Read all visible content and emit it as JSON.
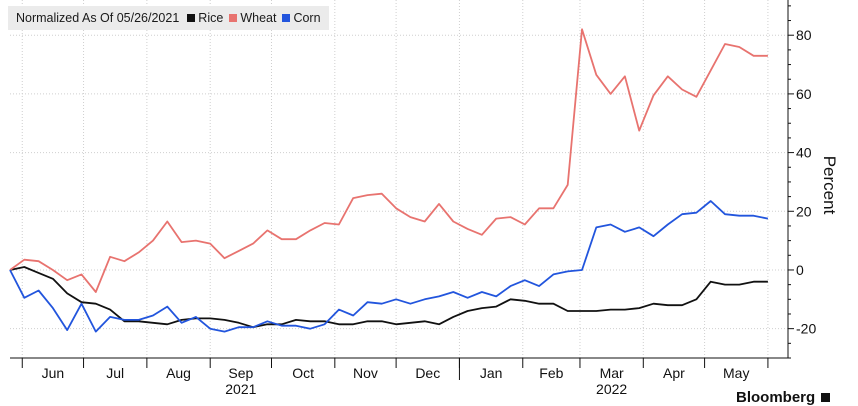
{
  "legend": {
    "note": "Normalized As Of 05/26/2021",
    "items": [
      {
        "label": "Rice",
        "color": "#111111"
      },
      {
        "label": "Wheat",
        "color": "#e8736f"
      },
      {
        "label": "Corn",
        "color": "#2255dd"
      }
    ]
  },
  "brand": {
    "label": "Bloomberg"
  },
  "chart_data": {
    "type": "line",
    "title": "",
    "normalization_note": "Normalized As Of 05/26/2021",
    "ylabel": "Percent",
    "y_axis_side": "right",
    "ylim": [
      -30,
      92
    ],
    "yticks": [
      -20,
      0,
      20,
      40,
      60,
      80
    ],
    "grid": true,
    "legend_position": "top-left",
    "x_start": "2021-05-26",
    "x_end": "2022-06-03",
    "month_labels": [
      "Jun",
      "Jul",
      "Aug",
      "Sep",
      "Oct",
      "Nov",
      "Dec",
      "Jan",
      "Feb",
      "Mar",
      "Apr",
      "May"
    ],
    "year_labels": [
      {
        "label": "2021",
        "month": "Sep"
      },
      {
        "label": "2022",
        "month": "Mar"
      }
    ],
    "x": [
      "2021-05-26",
      "2021-06-02",
      "2021-06-09",
      "2021-06-16",
      "2021-06-23",
      "2021-06-30",
      "2021-07-07",
      "2021-07-14",
      "2021-07-21",
      "2021-07-28",
      "2021-08-04",
      "2021-08-11",
      "2021-08-18",
      "2021-08-25",
      "2021-09-01",
      "2021-09-08",
      "2021-09-15",
      "2021-09-22",
      "2021-09-29",
      "2021-10-06",
      "2021-10-13",
      "2021-10-20",
      "2021-10-27",
      "2021-11-03",
      "2021-11-10",
      "2021-11-17",
      "2021-11-24",
      "2021-12-01",
      "2021-12-08",
      "2021-12-15",
      "2021-12-22",
      "2021-12-29",
      "2022-01-05",
      "2022-01-12",
      "2022-01-19",
      "2022-01-26",
      "2022-02-02",
      "2022-02-09",
      "2022-02-16",
      "2022-02-23",
      "2022-03-02",
      "2022-03-09",
      "2022-03-16",
      "2022-03-23",
      "2022-03-30",
      "2022-04-06",
      "2022-04-13",
      "2022-04-20",
      "2022-04-27",
      "2022-05-04",
      "2022-05-11",
      "2022-05-18",
      "2022-05-25",
      "2022-06-01"
    ],
    "series": [
      {
        "name": "Rice",
        "color": "#111111",
        "values": [
          0,
          1,
          -1,
          -3,
          -8,
          -11,
          -11.5,
          -13.5,
          -17.5,
          -17.5,
          -18,
          -18.5,
          -17,
          -16.5,
          -16.5,
          -17,
          -18,
          -19.5,
          -18.5,
          -18.5,
          -17,
          -17.5,
          -17.5,
          -18.5,
          -18.5,
          -17.5,
          -17.5,
          -18.5,
          -18,
          -17.5,
          -18.5,
          -16,
          -14,
          -13,
          -12.5,
          -10,
          -10.5,
          -11.5,
          -11.5,
          -14,
          -14,
          -14,
          -13.5,
          -13.5,
          -13,
          -11.5,
          -12,
          -12,
          -10,
          -4,
          -5,
          -5,
          -4,
          -4
        ]
      },
      {
        "name": "Wheat",
        "color": "#e8736f",
        "values": [
          0,
          3.5,
          3,
          0,
          -3.5,
          -1.5,
          -7.5,
          4.5,
          3,
          6,
          10,
          16.5,
          9.5,
          10,
          9,
          4,
          6.5,
          9,
          13.5,
          10.5,
          10.5,
          13.5,
          16,
          15.5,
          24.5,
          25.5,
          26,
          21,
          18,
          16.5,
          22.5,
          16.5,
          14,
          12,
          17.5,
          18,
          15.5,
          21,
          21,
          29,
          82,
          66.5,
          60,
          66,
          47.5,
          59.5,
          66,
          61.5,
          59,
          68,
          77,
          76,
          73,
          73
        ]
      },
      {
        "name": "Corn",
        "color": "#2255dd",
        "values": [
          0,
          -9.5,
          -7,
          -13,
          -20.5,
          -11.5,
          -21,
          -16,
          -17,
          -17,
          -15.5,
          -12.5,
          -18,
          -16,
          -20,
          -21,
          -19.5,
          -19.5,
          -17.5,
          -19,
          -19,
          -20,
          -18.5,
          -13.5,
          -15.5,
          -11,
          -11.5,
          -10,
          -11.5,
          -10,
          -9,
          -7.5,
          -9.5,
          -7.5,
          -9,
          -5.5,
          -3.5,
          -5.5,
          -1.5,
          -0.5,
          0,
          14.5,
          15.5,
          13,
          14.5,
          11.5,
          15.5,
          19,
          19.5,
          23.5,
          19,
          18.5,
          18.5,
          17.5
        ]
      }
    ]
  }
}
